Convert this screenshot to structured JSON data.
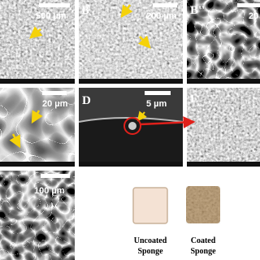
{
  "panels": {
    "a": {
      "scale": "500 µm"
    },
    "b": {
      "label": "B",
      "scale": "200 µm"
    },
    "b2": {
      "label": "B''",
      "scale": "20"
    },
    "c": {
      "scale": "20 µm"
    },
    "d": {
      "label": "D",
      "scale": "5 µm"
    },
    "e": {
      "label": "E"
    },
    "f": {
      "scale": "100 µm"
    }
  },
  "sponges": [
    {
      "caption": [
        "Uncoated",
        "Sponge"
      ]
    },
    {
      "caption": [
        "Coated",
        "Sponge"
      ]
    }
  ]
}
